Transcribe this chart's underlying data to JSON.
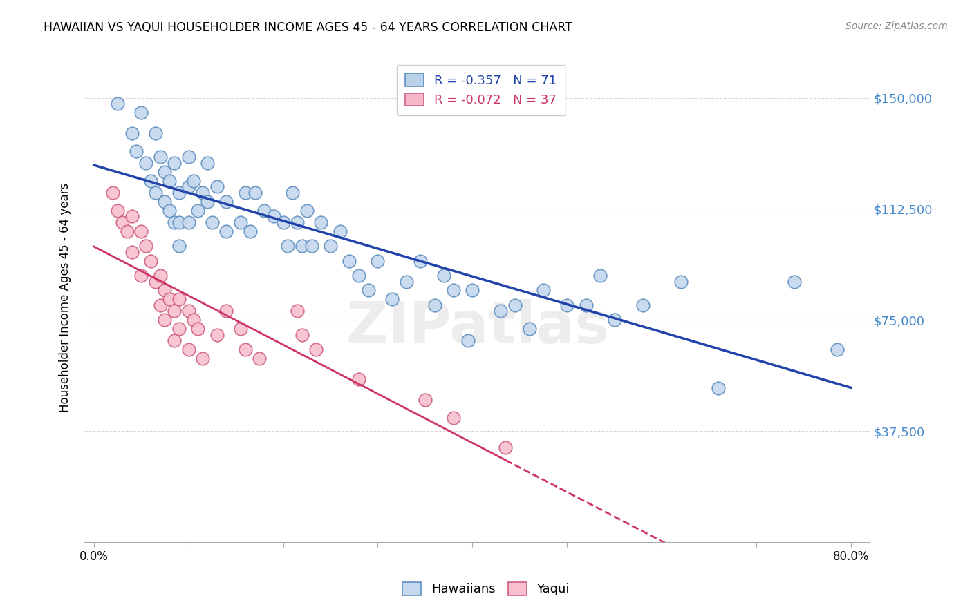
{
  "title": "HAWAIIAN VS YAQUI HOUSEHOLDER INCOME AGES 45 - 64 YEARS CORRELATION CHART",
  "source": "Source: ZipAtlas.com",
  "ylabel": "Householder Income Ages 45 - 64 years",
  "x_tick_vals": [
    0.0,
    0.1,
    0.2,
    0.3,
    0.4,
    0.5,
    0.6,
    0.7,
    0.8
  ],
  "x_tick_labels_visible": {
    "0.0": "0.0%",
    "0.8": "80.0%"
  },
  "y_tick_labels": [
    "$37,500",
    "$75,000",
    "$112,500",
    "$150,000"
  ],
  "y_tick_vals": [
    37500,
    75000,
    112500,
    150000
  ],
  "ylim": [
    0,
    165000
  ],
  "xlim": [
    -0.01,
    0.82
  ],
  "legend_items": [
    {
      "label": "R = -0.357   N = 71",
      "color": "#b8d0e8"
    },
    {
      "label": "R = -0.072   N = 37",
      "color": "#f5b8c8"
    }
  ],
  "hawaiians_color": "#c5d8ee",
  "hawaiians_edge": "#6090c0",
  "yaqui_color": "#f8c0ce",
  "yaqui_edge": "#d06080",
  "hawaiians_line_color": "#2244aa",
  "yaqui_line_color": "#cc3366",
  "background_color": "#ffffff",
  "grid_color": "#d8d8d8",
  "right_label_color": "#4488cc",
  "watermark": "ZIPatlas",
  "hawaiians_x": [
    0.025,
    0.04,
    0.045,
    0.05,
    0.055,
    0.06,
    0.065,
    0.065,
    0.07,
    0.075,
    0.075,
    0.08,
    0.08,
    0.085,
    0.085,
    0.09,
    0.09,
    0.09,
    0.1,
    0.1,
    0.1,
    0.105,
    0.11,
    0.115,
    0.12,
    0.12,
    0.125,
    0.13,
    0.14,
    0.14,
    0.155,
    0.16,
    0.165,
    0.17,
    0.18,
    0.19,
    0.2,
    0.205,
    0.21,
    0.215,
    0.22,
    0.225,
    0.23,
    0.24,
    0.25,
    0.26,
    0.27,
    0.28,
    0.29,
    0.3,
    0.315,
    0.33,
    0.345,
    0.36,
    0.37,
    0.38,
    0.395,
    0.4,
    0.43,
    0.445,
    0.46,
    0.475,
    0.5,
    0.52,
    0.535,
    0.55,
    0.58,
    0.62,
    0.66,
    0.74,
    0.785
  ],
  "hawaiians_y": [
    148000,
    138000,
    132000,
    145000,
    128000,
    122000,
    138000,
    118000,
    130000,
    125000,
    115000,
    122000,
    112000,
    128000,
    108000,
    118000,
    108000,
    100000,
    130000,
    120000,
    108000,
    122000,
    112000,
    118000,
    128000,
    115000,
    108000,
    120000,
    115000,
    105000,
    108000,
    118000,
    105000,
    118000,
    112000,
    110000,
    108000,
    100000,
    118000,
    108000,
    100000,
    112000,
    100000,
    108000,
    100000,
    105000,
    95000,
    90000,
    85000,
    95000,
    82000,
    88000,
    95000,
    80000,
    90000,
    85000,
    68000,
    85000,
    78000,
    80000,
    72000,
    85000,
    80000,
    80000,
    90000,
    75000,
    80000,
    88000,
    52000,
    88000,
    65000
  ],
  "yaqui_x": [
    0.02,
    0.025,
    0.03,
    0.035,
    0.04,
    0.04,
    0.05,
    0.05,
    0.055,
    0.06,
    0.065,
    0.07,
    0.07,
    0.075,
    0.075,
    0.08,
    0.085,
    0.085,
    0.09,
    0.09,
    0.1,
    0.1,
    0.105,
    0.11,
    0.115,
    0.13,
    0.14,
    0.155,
    0.16,
    0.175,
    0.215,
    0.22,
    0.235,
    0.28,
    0.35,
    0.38,
    0.435
  ],
  "yaqui_y": [
    118000,
    112000,
    108000,
    105000,
    110000,
    98000,
    105000,
    90000,
    100000,
    95000,
    88000,
    90000,
    80000,
    85000,
    75000,
    82000,
    78000,
    68000,
    82000,
    72000,
    78000,
    65000,
    75000,
    72000,
    62000,
    70000,
    78000,
    72000,
    65000,
    62000,
    78000,
    70000,
    65000,
    55000,
    48000,
    42000,
    32000
  ]
}
